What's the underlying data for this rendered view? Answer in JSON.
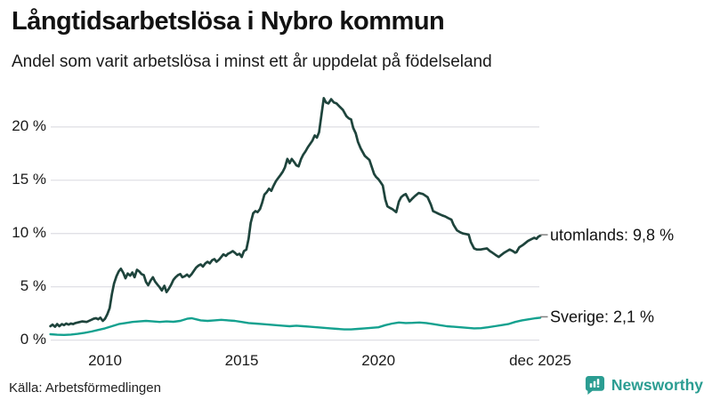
{
  "header": {
    "title": "Långtidsarbetslösa i Nybro kommun",
    "subtitle": "Andel som varit arbetslösa i minst ett år uppdelat på födelseland"
  },
  "footer": {
    "source": "Källa: Arbetsförmedlingen",
    "brand": "Newsworthy"
  },
  "colors": {
    "utomlands_line": "#1e443c",
    "sverige_line": "#14a18f",
    "gridline": "#e0e0e6",
    "label_dash": "#808080",
    "brand_teal": "#2b9d92",
    "text": "#111111"
  },
  "chart_data": {
    "type": "line",
    "title": "Långtidsarbetslösa i Nybro kommun",
    "subtitle": "Andel som varit arbetslösa i minst ett år uppdelat på födelseland",
    "xlabel": "",
    "ylabel": "",
    "grid": true,
    "xlim": [
      2008.0,
      2025.92
    ],
    "ylim": [
      0,
      23.5
    ],
    "y_ticks": [
      {
        "value": 0,
        "label": "0 %"
      },
      {
        "value": 5,
        "label": "5 %"
      },
      {
        "value": 10,
        "label": "10 %"
      },
      {
        "value": 15,
        "label": "15 %"
      },
      {
        "value": 20,
        "label": "20 %"
      }
    ],
    "x_ticks": [
      {
        "year": 2010,
        "label": "2010"
      },
      {
        "year": 2015,
        "label": "2015"
      },
      {
        "year": 2020,
        "label": "2020"
      },
      {
        "year": 2025.92,
        "label": "dec 2025"
      }
    ],
    "legend_position": "end-of-line-labels",
    "series": [
      {
        "name": "utomlands",
        "label": "utomlands: 9,8 %",
        "end_value": 9.8,
        "color": "#1e443c",
        "points": [
          [
            2008.0,
            1.3
          ],
          [
            2008.08,
            1.45
          ],
          [
            2008.17,
            1.25
          ],
          [
            2008.25,
            1.5
          ],
          [
            2008.33,
            1.3
          ],
          [
            2008.42,
            1.5
          ],
          [
            2008.5,
            1.4
          ],
          [
            2008.58,
            1.55
          ],
          [
            2008.67,
            1.45
          ],
          [
            2008.75,
            1.55
          ],
          [
            2008.83,
            1.5
          ],
          [
            2008.92,
            1.6
          ],
          [
            2009.0,
            1.65
          ],
          [
            2009.17,
            1.75
          ],
          [
            2009.33,
            1.7
          ],
          [
            2009.5,
            1.9
          ],
          [
            2009.58,
            2.0
          ],
          [
            2009.67,
            2.05
          ],
          [
            2009.75,
            1.95
          ],
          [
            2009.83,
            2.1
          ],
          [
            2009.92,
            1.8
          ],
          [
            2010.0,
            2.0
          ],
          [
            2010.08,
            2.4
          ],
          [
            2010.17,
            3.0
          ],
          [
            2010.25,
            4.3
          ],
          [
            2010.33,
            5.3
          ],
          [
            2010.42,
            6.0
          ],
          [
            2010.5,
            6.45
          ],
          [
            2010.58,
            6.7
          ],
          [
            2010.67,
            6.3
          ],
          [
            2010.75,
            5.8
          ],
          [
            2010.83,
            6.25
          ],
          [
            2010.92,
            6.05
          ],
          [
            2011.0,
            6.35
          ],
          [
            2011.08,
            5.9
          ],
          [
            2011.17,
            6.6
          ],
          [
            2011.25,
            6.45
          ],
          [
            2011.33,
            6.2
          ],
          [
            2011.42,
            6.1
          ],
          [
            2011.5,
            5.45
          ],
          [
            2011.58,
            5.15
          ],
          [
            2011.67,
            5.6
          ],
          [
            2011.75,
            5.9
          ],
          [
            2011.83,
            5.5
          ],
          [
            2011.92,
            5.2
          ],
          [
            2012.0,
            4.95
          ],
          [
            2012.08,
            4.65
          ],
          [
            2012.17,
            5.1
          ],
          [
            2012.25,
            4.5
          ],
          [
            2012.33,
            4.8
          ],
          [
            2012.42,
            5.2
          ],
          [
            2012.5,
            5.65
          ],
          [
            2012.58,
            5.9
          ],
          [
            2012.67,
            6.1
          ],
          [
            2012.75,
            6.2
          ],
          [
            2012.83,
            5.9
          ],
          [
            2012.92,
            6.0
          ],
          [
            2013.0,
            6.15
          ],
          [
            2013.08,
            5.95
          ],
          [
            2013.17,
            6.2
          ],
          [
            2013.25,
            6.5
          ],
          [
            2013.33,
            6.8
          ],
          [
            2013.42,
            7.0
          ],
          [
            2013.5,
            7.1
          ],
          [
            2013.58,
            6.9
          ],
          [
            2013.67,
            7.2
          ],
          [
            2013.75,
            7.35
          ],
          [
            2013.83,
            7.2
          ],
          [
            2013.92,
            7.5
          ],
          [
            2014.0,
            7.6
          ],
          [
            2014.08,
            7.35
          ],
          [
            2014.17,
            7.55
          ],
          [
            2014.25,
            7.8
          ],
          [
            2014.33,
            8.05
          ],
          [
            2014.42,
            7.9
          ],
          [
            2014.5,
            8.1
          ],
          [
            2014.58,
            8.2
          ],
          [
            2014.67,
            8.35
          ],
          [
            2014.75,
            8.2
          ],
          [
            2014.83,
            8.0
          ],
          [
            2014.92,
            8.1
          ],
          [
            2015.0,
            7.8
          ],
          [
            2015.08,
            8.35
          ],
          [
            2015.17,
            8.5
          ],
          [
            2015.25,
            9.5
          ],
          [
            2015.33,
            11.0
          ],
          [
            2015.42,
            11.9
          ],
          [
            2015.5,
            12.1
          ],
          [
            2015.58,
            12.0
          ],
          [
            2015.67,
            12.3
          ],
          [
            2015.75,
            12.9
          ],
          [
            2015.83,
            13.65
          ],
          [
            2015.92,
            13.9
          ],
          [
            2016.0,
            14.2
          ],
          [
            2016.08,
            14.0
          ],
          [
            2016.17,
            14.5
          ],
          [
            2016.25,
            14.9
          ],
          [
            2016.33,
            15.2
          ],
          [
            2016.42,
            15.5
          ],
          [
            2016.5,
            15.8
          ],
          [
            2016.58,
            16.2
          ],
          [
            2016.67,
            17.0
          ],
          [
            2016.75,
            16.6
          ],
          [
            2016.83,
            17.0
          ],
          [
            2016.92,
            16.7
          ],
          [
            2017.0,
            16.4
          ],
          [
            2017.08,
            16.3
          ],
          [
            2017.17,
            17.0
          ],
          [
            2017.25,
            17.4
          ],
          [
            2017.33,
            17.7
          ],
          [
            2017.42,
            18.1
          ],
          [
            2017.5,
            18.4
          ],
          [
            2017.58,
            18.7
          ],
          [
            2017.67,
            19.2
          ],
          [
            2017.75,
            19.0
          ],
          [
            2017.83,
            19.5
          ],
          [
            2017.92,
            21.2
          ],
          [
            2018.0,
            22.7
          ],
          [
            2018.08,
            22.3
          ],
          [
            2018.17,
            22.2
          ],
          [
            2018.27,
            22.6
          ],
          [
            2018.37,
            22.3
          ],
          [
            2018.47,
            22.2
          ],
          [
            2018.58,
            21.9
          ],
          [
            2018.7,
            21.6
          ],
          [
            2018.83,
            21.0
          ],
          [
            2018.92,
            20.8
          ],
          [
            2019.0,
            20.7
          ],
          [
            2019.08,
            19.9
          ],
          [
            2019.17,
            19.4
          ],
          [
            2019.25,
            18.6
          ],
          [
            2019.35,
            18.0
          ],
          [
            2019.5,
            17.3
          ],
          [
            2019.67,
            16.9
          ],
          [
            2019.75,
            16.3
          ],
          [
            2019.84,
            15.6
          ],
          [
            2019.92,
            15.3
          ],
          [
            2020.0,
            15.1
          ],
          [
            2020.08,
            14.8
          ],
          [
            2020.16,
            14.5
          ],
          [
            2020.25,
            13.2
          ],
          [
            2020.33,
            12.55
          ],
          [
            2020.42,
            12.4
          ],
          [
            2020.5,
            12.3
          ],
          [
            2020.58,
            12.15
          ],
          [
            2020.65,
            12.0
          ],
          [
            2020.75,
            13.0
          ],
          [
            2020.83,
            13.4
          ],
          [
            2020.92,
            13.6
          ],
          [
            2021.0,
            13.7
          ],
          [
            2021.08,
            13.3
          ],
          [
            2021.14,
            13.0
          ],
          [
            2021.25,
            13.3
          ],
          [
            2021.33,
            13.5
          ],
          [
            2021.47,
            13.8
          ],
          [
            2021.63,
            13.7
          ],
          [
            2021.8,
            13.4
          ],
          [
            2021.92,
            12.7
          ],
          [
            2022.0,
            12.1
          ],
          [
            2022.08,
            12.0
          ],
          [
            2022.2,
            11.85
          ],
          [
            2022.33,
            11.7
          ],
          [
            2022.44,
            11.6
          ],
          [
            2022.55,
            11.45
          ],
          [
            2022.67,
            11.3
          ],
          [
            2022.75,
            10.8
          ],
          [
            2022.87,
            10.3
          ],
          [
            2023.0,
            10.1
          ],
          [
            2023.1,
            10.0
          ],
          [
            2023.2,
            9.95
          ],
          [
            2023.3,
            9.9
          ],
          [
            2023.38,
            9.2
          ],
          [
            2023.5,
            8.6
          ],
          [
            2023.6,
            8.5
          ],
          [
            2023.74,
            8.5
          ],
          [
            2023.85,
            8.55
          ],
          [
            2023.97,
            8.6
          ],
          [
            2024.08,
            8.35
          ],
          [
            2024.17,
            8.2
          ],
          [
            2024.28,
            8.0
          ],
          [
            2024.4,
            7.8
          ],
          [
            2024.5,
            8.0
          ],
          [
            2024.6,
            8.2
          ],
          [
            2024.7,
            8.35
          ],
          [
            2024.8,
            8.5
          ],
          [
            2024.92,
            8.35
          ],
          [
            2025.0,
            8.2
          ],
          [
            2025.05,
            8.25
          ],
          [
            2025.15,
            8.7
          ],
          [
            2025.27,
            8.9
          ],
          [
            2025.37,
            9.1
          ],
          [
            2025.47,
            9.3
          ],
          [
            2025.58,
            9.45
          ],
          [
            2025.7,
            9.6
          ],
          [
            2025.78,
            9.5
          ],
          [
            2025.85,
            9.7
          ],
          [
            2025.92,
            9.8
          ]
        ]
      },
      {
        "name": "Sverige",
        "label": "Sverige: 2,1 %",
        "end_value": 2.1,
        "color": "#14a18f",
        "points": [
          [
            2008.0,
            0.55
          ],
          [
            2008.25,
            0.5
          ],
          [
            2008.5,
            0.48
          ],
          [
            2008.75,
            0.52
          ],
          [
            2009.0,
            0.58
          ],
          [
            2009.25,
            0.68
          ],
          [
            2009.5,
            0.8
          ],
          [
            2009.75,
            0.95
          ],
          [
            2010.0,
            1.1
          ],
          [
            2010.25,
            1.3
          ],
          [
            2010.5,
            1.5
          ],
          [
            2010.75,
            1.6
          ],
          [
            2011.0,
            1.7
          ],
          [
            2011.25,
            1.75
          ],
          [
            2011.5,
            1.8
          ],
          [
            2011.75,
            1.75
          ],
          [
            2012.0,
            1.7
          ],
          [
            2012.25,
            1.75
          ],
          [
            2012.5,
            1.72
          ],
          [
            2012.75,
            1.8
          ],
          [
            2013.0,
            2.0
          ],
          [
            2013.17,
            2.05
          ],
          [
            2013.33,
            1.95
          ],
          [
            2013.5,
            1.85
          ],
          [
            2013.75,
            1.8
          ],
          [
            2014.0,
            1.85
          ],
          [
            2014.25,
            1.9
          ],
          [
            2014.5,
            1.85
          ],
          [
            2014.75,
            1.8
          ],
          [
            2015.0,
            1.7
          ],
          [
            2015.25,
            1.6
          ],
          [
            2015.5,
            1.55
          ],
          [
            2015.75,
            1.5
          ],
          [
            2016.0,
            1.45
          ],
          [
            2016.25,
            1.4
          ],
          [
            2016.5,
            1.35
          ],
          [
            2016.75,
            1.3
          ],
          [
            2017.0,
            1.35
          ],
          [
            2017.25,
            1.3
          ],
          [
            2017.5,
            1.25
          ],
          [
            2017.75,
            1.2
          ],
          [
            2018.0,
            1.15
          ],
          [
            2018.25,
            1.1
          ],
          [
            2018.5,
            1.05
          ],
          [
            2018.75,
            1.0
          ],
          [
            2019.0,
            1.0
          ],
          [
            2019.25,
            1.05
          ],
          [
            2019.5,
            1.1
          ],
          [
            2019.75,
            1.15
          ],
          [
            2020.0,
            1.2
          ],
          [
            2020.25,
            1.4
          ],
          [
            2020.5,
            1.55
          ],
          [
            2020.75,
            1.65
          ],
          [
            2021.0,
            1.6
          ],
          [
            2021.25,
            1.62
          ],
          [
            2021.5,
            1.65
          ],
          [
            2021.75,
            1.6
          ],
          [
            2022.0,
            1.5
          ],
          [
            2022.25,
            1.4
          ],
          [
            2022.5,
            1.3
          ],
          [
            2022.75,
            1.25
          ],
          [
            2023.0,
            1.2
          ],
          [
            2023.25,
            1.15
          ],
          [
            2023.5,
            1.1
          ],
          [
            2023.75,
            1.12
          ],
          [
            2024.0,
            1.2
          ],
          [
            2024.25,
            1.3
          ],
          [
            2024.5,
            1.4
          ],
          [
            2024.75,
            1.5
          ],
          [
            2025.0,
            1.7
          ],
          [
            2025.25,
            1.85
          ],
          [
            2025.5,
            1.95
          ],
          [
            2025.75,
            2.05
          ],
          [
            2025.92,
            2.1
          ]
        ]
      }
    ]
  }
}
